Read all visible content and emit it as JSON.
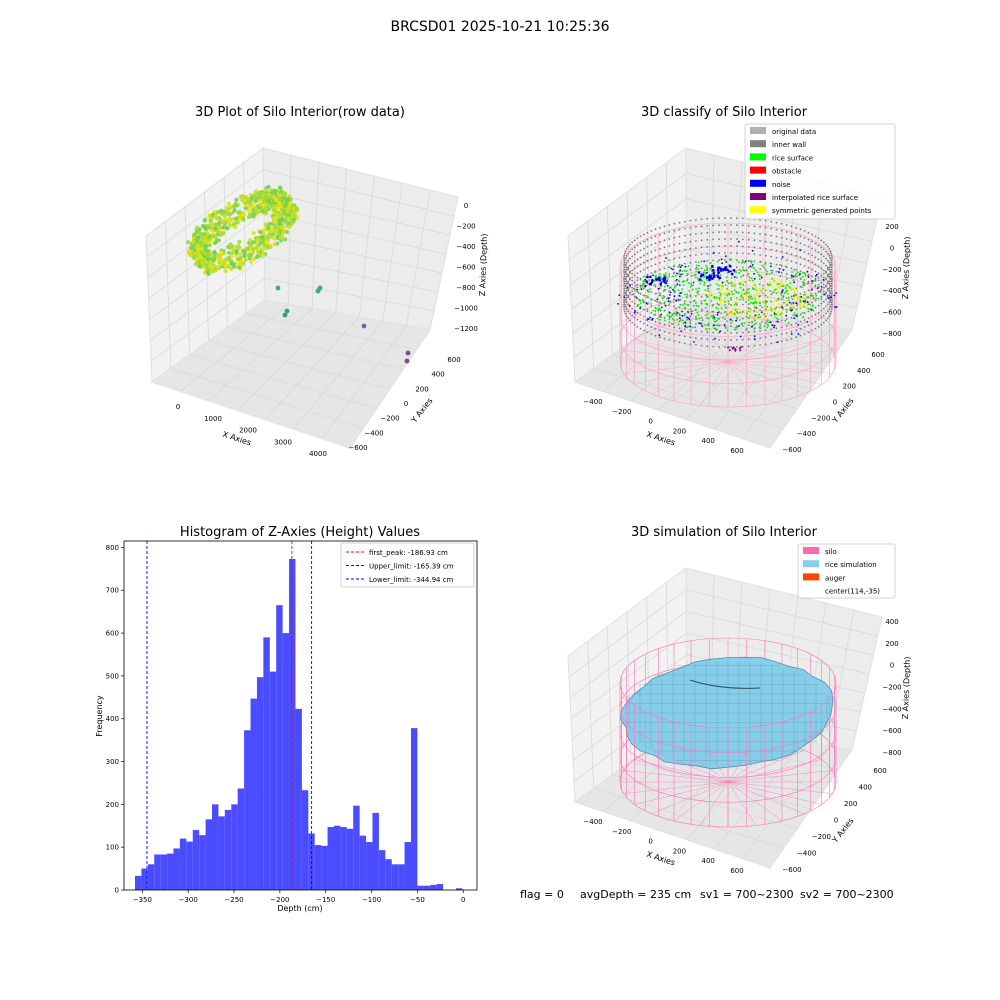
{
  "figure": {
    "suptitle": "BRCSD01 2025-10-21 10:25:36"
  },
  "status_bar": {
    "flag": "flag = 0",
    "avg_depth": "avgDepth = 235 cm",
    "sv1": "sv1 = 700~2300",
    "sv2": "sv2 = 700~2300"
  },
  "panels": {
    "raw": {
      "title": "3D Plot of Silo Interior(row data)",
      "xlabel": "X Axies",
      "ylabel": "Y Axies",
      "zlabel": "Z Axies (Depth)",
      "xticks": [
        "0",
        "1000",
        "2000",
        "3000",
        "4000"
      ],
      "yticks": [
        "600",
        "400",
        "200",
        "0",
        "−200",
        "−400",
        "−600"
      ],
      "zticks": [
        "0",
        "−200",
        "−400",
        "−600",
        "−800",
        "−1000",
        "−1200"
      ]
    },
    "classify": {
      "title": "3D classify of Silo Interior",
      "xlabel": "X Axies",
      "ylabel": "Y Axies",
      "zlabel": "Z Axies (Depth)",
      "xticks": [
        "−400",
        "−200",
        "0",
        "200",
        "400",
        "600"
      ],
      "yticks": [
        "600",
        "400",
        "200",
        "0",
        "−200",
        "−400",
        "−600"
      ],
      "zticks": [
        "200",
        "0",
        "−200",
        "−400",
        "−600",
        "−800"
      ],
      "legend": [
        {
          "label": "original data",
          "color": "#b0b0b0"
        },
        {
          "label": "inner wall",
          "color": "#808080"
        },
        {
          "label": "rice surface",
          "color": "#00ff00"
        },
        {
          "label": "obstacle",
          "color": "#ff0000"
        },
        {
          "label": "noise",
          "color": "#0000ff"
        },
        {
          "label": "interpolated rice surface",
          "color": "#800080"
        },
        {
          "label": "symmetric generated points",
          "color": "#ffff00"
        }
      ]
    },
    "simulation": {
      "title": "3D simulation of Silo Interior",
      "xlabel": "X Axies",
      "ylabel": "Y Axies",
      "zlabel": "Z Axies (Depth)",
      "xticks": [
        "−400",
        "−200",
        "0",
        "200",
        "400",
        "600"
      ],
      "yticks": [
        "600",
        "400",
        "200",
        "0",
        "−200",
        "−400",
        "−600"
      ],
      "zticks": [
        "400",
        "200",
        "0",
        "−200",
        "−400",
        "−600",
        "−800"
      ],
      "legend": [
        {
          "label": "silo",
          "color": "#ff69b4"
        },
        {
          "label": "rice simulation",
          "color": "#87ceeb"
        },
        {
          "label": "auger",
          "color": "#ff4500"
        },
        {
          "label": "center(114,-35)",
          "color": ""
        }
      ]
    }
  },
  "chart_data": [
    {
      "type": "scatter",
      "title": "3D Plot of Silo Interior(row data)",
      "xlabel": "X Axies",
      "ylabel": "Y Axies",
      "zlabel": "Z Axies (Depth)",
      "xlim": [
        -400,
        4300
      ],
      "ylim": [
        -700,
        700
      ],
      "zlim": [
        -1300,
        100
      ],
      "colormap": "viridis",
      "grid": true
    },
    {
      "type": "scatter",
      "title": "3D classify of Silo Interior",
      "xlabel": "X Axies",
      "ylabel": "Y Axies",
      "zlabel": "Z Axies (Depth)",
      "xlim": [
        -500,
        700
      ],
      "ylim": [
        -650,
        650
      ],
      "zlim": [
        -900,
        300
      ],
      "series": [
        {
          "name": "original data",
          "color": "#b0b0b0"
        },
        {
          "name": "inner wall",
          "color": "#808080"
        },
        {
          "name": "rice surface",
          "color": "#00ff00"
        },
        {
          "name": "obstacle",
          "color": "#ff0000"
        },
        {
          "name": "noise",
          "color": "#0000ff"
        },
        {
          "name": "interpolated rice surface",
          "color": "#800080"
        },
        {
          "name": "symmetric generated points",
          "color": "#ffff00"
        }
      ],
      "legend_position": "top-right",
      "grid": true
    },
    {
      "type": "bar",
      "title": "Histogram of Z-Axies (Height) Values",
      "xlabel": "Depth (cm)",
      "ylabel": "Frequency",
      "xlim": [
        -370,
        15
      ],
      "ylim": [
        0,
        815
      ],
      "xticks": [
        -350,
        -300,
        -250,
        -200,
        -150,
        -100,
        -50,
        0
      ],
      "yticks": [
        0,
        100,
        200,
        300,
        400,
        500,
        600,
        700,
        800
      ],
      "bar_color": "#4b4bff",
      "bins": [
        {
          "x0": -358,
          "x1": -351,
          "y": 33
        },
        {
          "x0": -351,
          "x1": -344,
          "y": 50
        },
        {
          "x0": -344,
          "x1": -337,
          "y": 60
        },
        {
          "x0": -337,
          "x1": -330,
          "y": 83
        },
        {
          "x0": -330,
          "x1": -323,
          "y": 83
        },
        {
          "x0": -323,
          "x1": -316,
          "y": 85
        },
        {
          "x0": -316,
          "x1": -309,
          "y": 97
        },
        {
          "x0": -309,
          "x1": -302,
          "y": 120
        },
        {
          "x0": -302,
          "x1": -295,
          "y": 113
        },
        {
          "x0": -295,
          "x1": -288,
          "y": 140
        },
        {
          "x0": -288,
          "x1": -281,
          "y": 128
        },
        {
          "x0": -281,
          "x1": -274,
          "y": 165
        },
        {
          "x0": -274,
          "x1": -267,
          "y": 200
        },
        {
          "x0": -267,
          "x1": -260,
          "y": 172
        },
        {
          "x0": -260,
          "x1": -253,
          "y": 187
        },
        {
          "x0": -253,
          "x1": -246,
          "y": 200
        },
        {
          "x0": -246,
          "x1": -239,
          "y": 237
        },
        {
          "x0": -239,
          "x1": -232,
          "y": 373
        },
        {
          "x0": -232,
          "x1": -225,
          "y": 447
        },
        {
          "x0": -225,
          "x1": -218,
          "y": 497
        },
        {
          "x0": -218,
          "x1": -211,
          "y": 590
        },
        {
          "x0": -211,
          "x1": -204,
          "y": 510
        },
        {
          "x0": -204,
          "x1": -197,
          "y": 665
        },
        {
          "x0": -197,
          "x1": -190,
          "y": 600
        },
        {
          "x0": -190,
          "x1": -183,
          "y": 773
        },
        {
          "x0": -183,
          "x1": -176,
          "y": 423
        },
        {
          "x0": -176,
          "x1": -169,
          "y": 233
        },
        {
          "x0": -169,
          "x1": -162,
          "y": 132
        },
        {
          "x0": -162,
          "x1": -155,
          "y": 105
        },
        {
          "x0": -155,
          "x1": -148,
          "y": 103
        },
        {
          "x0": -148,
          "x1": -141,
          "y": 147
        },
        {
          "x0": -141,
          "x1": -134,
          "y": 150
        },
        {
          "x0": -134,
          "x1": -127,
          "y": 147
        },
        {
          "x0": -127,
          "x1": -120,
          "y": 143
        },
        {
          "x0": -120,
          "x1": -113,
          "y": 197
        },
        {
          "x0": -113,
          "x1": -106,
          "y": 127
        },
        {
          "x0": -106,
          "x1": -99,
          "y": 112
        },
        {
          "x0": -99,
          "x1": -92,
          "y": 180
        },
        {
          "x0": -92,
          "x1": -85,
          "y": 93
        },
        {
          "x0": -85,
          "x1": -78,
          "y": 72
        },
        {
          "x0": -78,
          "x1": -71,
          "y": 60
        },
        {
          "x0": -71,
          "x1": -64,
          "y": 60
        },
        {
          "x0": -64,
          "x1": -57,
          "y": 112
        },
        {
          "x0": -57,
          "x1": -50,
          "y": 378
        },
        {
          "x0": -50,
          "x1": -43,
          "y": 10
        },
        {
          "x0": -43,
          "x1": -36,
          "y": 10
        },
        {
          "x0": -36,
          "x1": -29,
          "y": 12
        },
        {
          "x0": -29,
          "x1": -22,
          "y": 14
        },
        {
          "x0": -8,
          "x1": -1,
          "y": 4
        }
      ],
      "lines": [
        {
          "name": "first_peak: -186.93 cm",
          "x": -186.93,
          "color": "#ff0000"
        },
        {
          "name": "Upper_limit: -165.39 cm",
          "x": -165.39,
          "color": "#0000ff"
        },
        {
          "name": "Lower_limit: -344.94 cm",
          "x": -344.94,
          "color": "#0000ff"
        }
      ],
      "legend_position": "top-right"
    },
    {
      "type": "area",
      "title": "3D simulation of Silo Interior",
      "xlabel": "X Axies",
      "ylabel": "Y Axies",
      "zlabel": "Z Axies (Depth)",
      "xlim": [
        -500,
        700
      ],
      "ylim": [
        -650,
        650
      ],
      "zlim": [
        -900,
        400
      ],
      "series": [
        {
          "name": "silo",
          "color": "#ff69b4"
        },
        {
          "name": "rice simulation",
          "color": "#87ceeb"
        },
        {
          "name": "auger",
          "color": "#ff4500"
        },
        {
          "name": "center(114,-35)"
        }
      ],
      "legend_position": "top-right",
      "grid": true
    }
  ]
}
